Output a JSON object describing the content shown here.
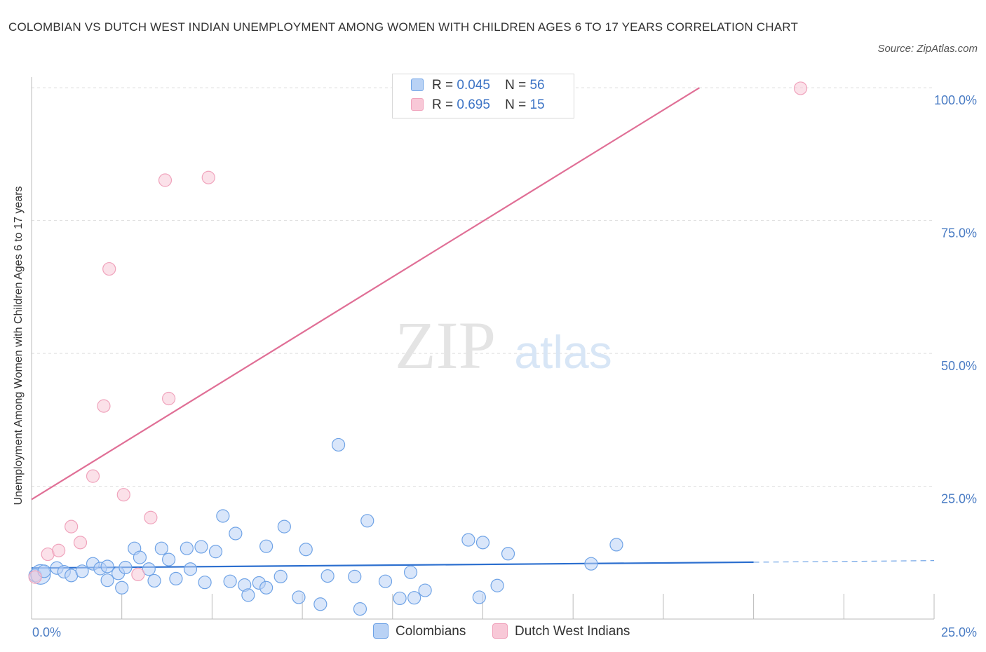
{
  "chart_data": {
    "type": "scatter",
    "title": "COLOMBIAN VS DUTCH WEST INDIAN UNEMPLOYMENT AMONG WOMEN WITH CHILDREN AGES 6 TO 17 YEARS CORRELATION CHART",
    "source": "Source: ZipAtlas.com",
    "watermark": {
      "zip": "ZIP",
      "atlas": "atlas"
    },
    "ylabel": "Unemployment Among Women with Children Ages 6 to 17 years",
    "xlim": [
      0,
      25
    ],
    "ylim": [
      0,
      102
    ],
    "y_ticks": [
      {
        "value": 25,
        "label": "25.0%"
      },
      {
        "value": 50,
        "label": "50.0%"
      },
      {
        "value": 75,
        "label": "75.0%"
      },
      {
        "value": 100,
        "label": "100.0%"
      }
    ],
    "x_tick_labels": {
      "min": "0.0%",
      "max": "25.0%"
    },
    "grid": true,
    "legend_placement": "top-center",
    "series": [
      {
        "name": "Colombians",
        "color": "#6fa3e6",
        "fill": "#b9d2f5",
        "trend_color": "#2c6fcf",
        "R": "0.045",
        "N": "56",
        "trend": {
          "x0": 0,
          "y0": 9.6,
          "x1": 20,
          "y1": 10.7,
          "dash_to": 25,
          "dash_y": 11.0
        },
        "points": [
          [
            0.1,
            8.2
          ],
          [
            0.25,
            8.4
          ],
          [
            0.35,
            9.0
          ],
          [
            0.7,
            9.6
          ],
          [
            0.9,
            8.9
          ],
          [
            1.1,
            8.2
          ],
          [
            1.4,
            9.0
          ],
          [
            1.7,
            10.4
          ],
          [
            1.9,
            9.5
          ],
          [
            2.1,
            9.9
          ],
          [
            2.1,
            7.3
          ],
          [
            2.4,
            8.6
          ],
          [
            2.5,
            5.9
          ],
          [
            2.6,
            9.7
          ],
          [
            2.85,
            13.3
          ],
          [
            3.0,
            11.6
          ],
          [
            3.25,
            9.4
          ],
          [
            3.4,
            7.2
          ],
          [
            3.6,
            13.3
          ],
          [
            3.8,
            11.2
          ],
          [
            4.0,
            7.6
          ],
          [
            4.3,
            13.3
          ],
          [
            4.4,
            9.4
          ],
          [
            4.7,
            13.6
          ],
          [
            4.8,
            6.9
          ],
          [
            5.1,
            12.7
          ],
          [
            5.3,
            19.4
          ],
          [
            5.5,
            7.1
          ],
          [
            5.65,
            16.1
          ],
          [
            5.9,
            6.4
          ],
          [
            6.0,
            4.5
          ],
          [
            6.3,
            6.8
          ],
          [
            6.5,
            5.9
          ],
          [
            6.5,
            13.7
          ],
          [
            6.9,
            8.0
          ],
          [
            7.0,
            17.4
          ],
          [
            7.4,
            4.1
          ],
          [
            7.6,
            13.1
          ],
          [
            8.0,
            2.8
          ],
          [
            8.2,
            8.1
          ],
          [
            8.5,
            32.8
          ],
          [
            8.95,
            8.0
          ],
          [
            9.1,
            1.9
          ],
          [
            9.3,
            18.5
          ],
          [
            9.8,
            7.1
          ],
          [
            10.2,
            3.9
          ],
          [
            10.5,
            8.8
          ],
          [
            10.6,
            4.0
          ],
          [
            10.9,
            5.4
          ],
          [
            12.1,
            14.9
          ],
          [
            12.4,
            4.1
          ],
          [
            12.5,
            14.4
          ],
          [
            12.9,
            6.3
          ],
          [
            13.2,
            12.3
          ],
          [
            15.5,
            10.4
          ],
          [
            16.2,
            14.0
          ]
        ]
      },
      {
        "name": "Dutch West Indians",
        "color": "#f0a3bc",
        "fill": "#f8c8d7",
        "trend_color": "#e06f96",
        "R": "0.695",
        "N": "15",
        "trend": {
          "x0": 0,
          "y0": 22.5,
          "x1": 18.5,
          "y1": 100
        },
        "points": [
          [
            0.1,
            7.9
          ],
          [
            0.45,
            12.2
          ],
          [
            0.75,
            12.9
          ],
          [
            1.1,
            17.4
          ],
          [
            1.35,
            14.4
          ],
          [
            1.7,
            26.9
          ],
          [
            2.0,
            40.1
          ],
          [
            2.15,
            65.9
          ],
          [
            2.55,
            23.4
          ],
          [
            2.95,
            8.4
          ],
          [
            3.3,
            19.1
          ],
          [
            3.7,
            82.6
          ],
          [
            3.8,
            41.5
          ],
          [
            4.9,
            83.1
          ],
          [
            21.3,
            99.9
          ]
        ]
      }
    ]
  },
  "legend_labels": {
    "r": "R =",
    "n": "N ="
  }
}
